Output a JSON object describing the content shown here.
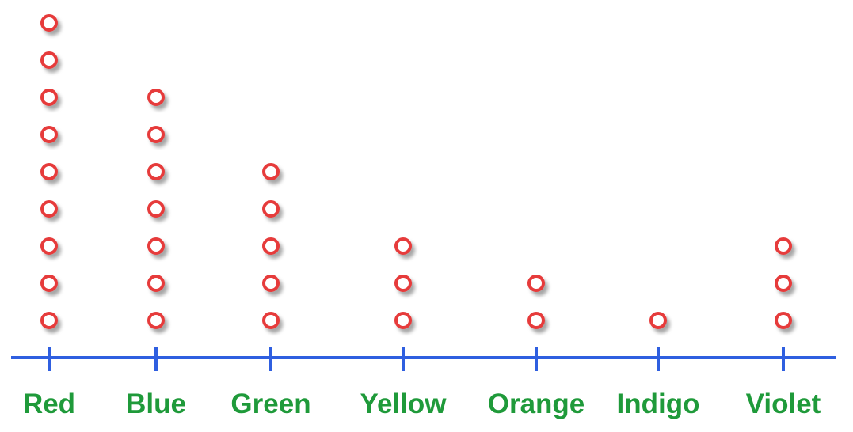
{
  "chart_data": {
    "type": "scatter",
    "categories": [
      "Red",
      "Blue",
      "Green",
      "Yellow",
      "Orange",
      "Indigo",
      "Violet"
    ],
    "values": [
      9,
      7,
      5,
      3,
      2,
      1,
      3
    ],
    "grid": false,
    "colors": {
      "marker": "#e63b3b",
      "axis": "#2f5fe0",
      "label": "#1f9a3a"
    }
  }
}
